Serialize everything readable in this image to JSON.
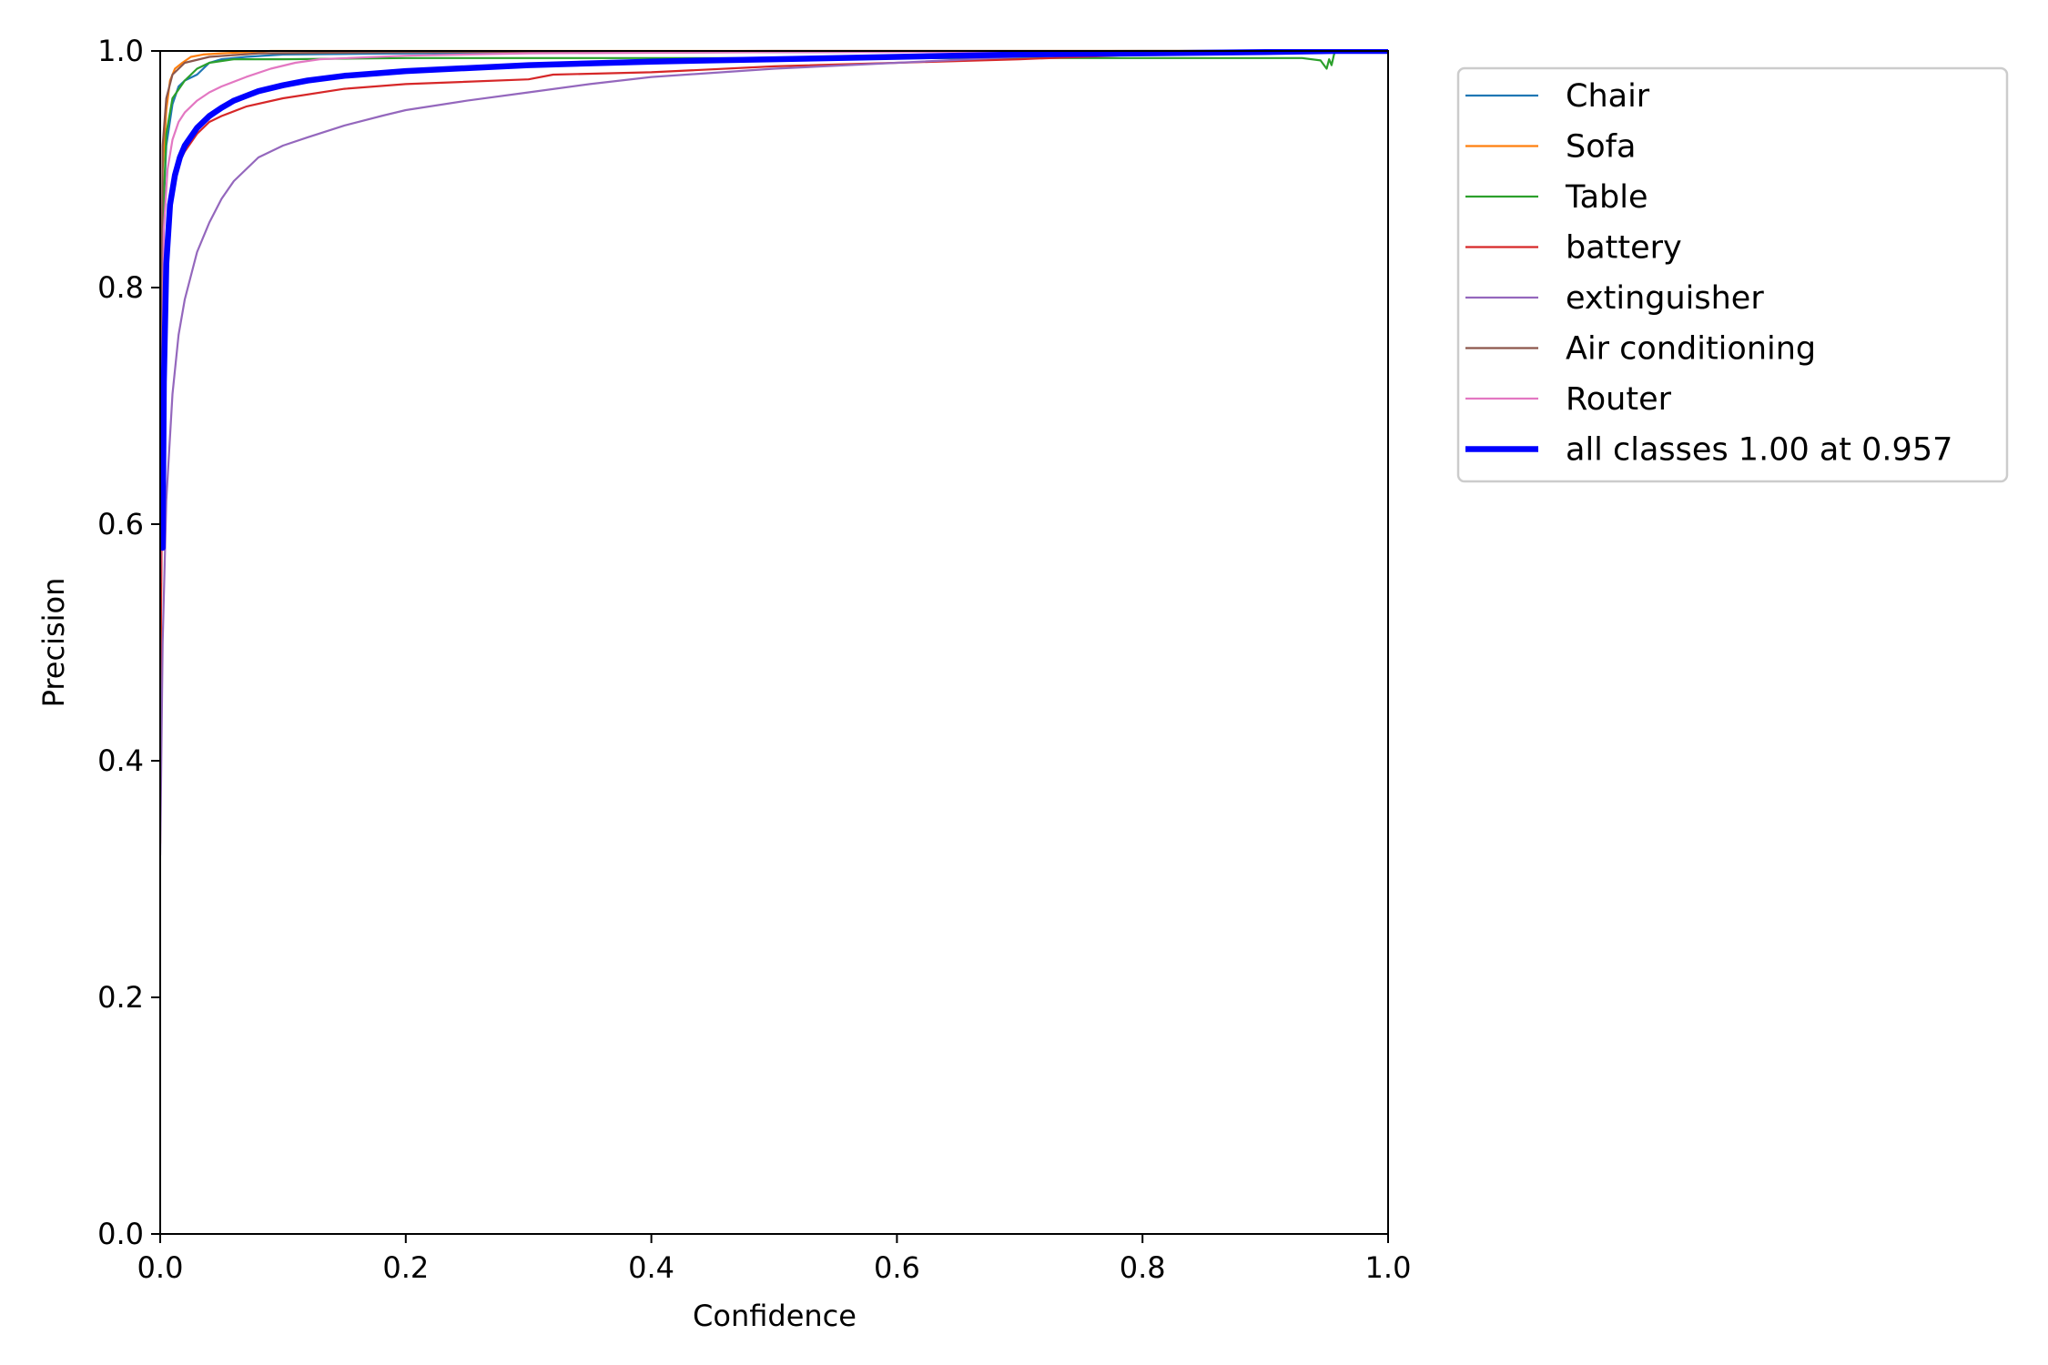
{
  "chart_data": {
    "type": "line",
    "xlabel": "Confidence",
    "ylabel": "Precision",
    "xlim": [
      0.0,
      1.0
    ],
    "ylim": [
      0.0,
      1.0
    ],
    "xticks": [
      "0.0",
      "0.2",
      "0.4",
      "0.6",
      "0.8",
      "1.0"
    ],
    "yticks": [
      "0.0",
      "0.2",
      "0.4",
      "0.6",
      "0.8",
      "1.0"
    ],
    "grid": false,
    "legend_placement": "outside upper right",
    "series": [
      {
        "name": "Chair",
        "color": "#1f77b4",
        "width": 2.2,
        "x": [
          0.0,
          0.002,
          0.005,
          0.01,
          0.015,
          0.02,
          0.03,
          0.04,
          0.05,
          0.07,
          0.1,
          0.2,
          0.5,
          0.8,
          0.957,
          1.0
        ],
        "y": [
          0.38,
          0.85,
          0.92,
          0.955,
          0.97,
          0.975,
          0.98,
          0.99,
          0.993,
          0.995,
          0.997,
          0.998,
          0.999,
          1.0,
          1.0,
          1.0
        ]
      },
      {
        "name": "Sofa",
        "color": "#ff7f0e",
        "width": 2.2,
        "x": [
          0.0,
          0.002,
          0.005,
          0.008,
          0.012,
          0.018,
          0.025,
          0.035,
          0.05,
          0.07,
          0.09,
          0.12,
          0.5,
          1.0
        ],
        "y": [
          0.33,
          0.9,
          0.95,
          0.975,
          0.985,
          0.99,
          0.995,
          0.997,
          0.998,
          0.999,
          1.0,
          1.0,
          1.0,
          1.0
        ]
      },
      {
        "name": "Table",
        "color": "#2ca02c",
        "width": 2.2,
        "x": [
          0.0,
          0.002,
          0.005,
          0.01,
          0.02,
          0.03,
          0.04,
          0.06,
          0.1,
          0.2,
          0.5,
          0.8,
          0.93,
          0.945,
          0.95,
          0.952,
          0.954,
          0.956,
          0.957,
          1.0
        ],
        "y": [
          0.5,
          0.85,
          0.93,
          0.96,
          0.975,
          0.985,
          0.99,
          0.993,
          0.993,
          0.994,
          0.994,
          0.994,
          0.994,
          0.992,
          0.985,
          0.993,
          0.988,
          0.997,
          1.0,
          1.0
        ]
      },
      {
        "name": "battery",
        "color": "#d62728",
        "width": 2.2,
        "x": [
          0.0,
          0.003,
          0.006,
          0.01,
          0.015,
          0.02,
          0.03,
          0.04,
          0.05,
          0.07,
          0.1,
          0.15,
          0.2,
          0.3,
          0.32,
          0.4,
          0.5,
          0.6,
          0.7,
          0.8,
          1.0
        ],
        "y": [
          0.45,
          0.8,
          0.86,
          0.89,
          0.905,
          0.915,
          0.93,
          0.94,
          0.945,
          0.953,
          0.96,
          0.968,
          0.972,
          0.976,
          0.98,
          0.982,
          0.987,
          0.99,
          0.993,
          0.997,
          1.0
        ]
      },
      {
        "name": "extinguisher",
        "color": "#9467bd",
        "width": 2.2,
        "x": [
          0.0,
          0.002,
          0.005,
          0.01,
          0.015,
          0.02,
          0.03,
          0.04,
          0.05,
          0.06,
          0.07,
          0.08,
          0.09,
          0.1,
          0.12,
          0.15,
          0.18,
          0.2,
          0.25,
          0.3,
          0.35,
          0.4,
          0.5,
          0.6,
          0.7,
          0.8,
          1.0
        ],
        "y": [
          0.32,
          0.5,
          0.62,
          0.71,
          0.76,
          0.79,
          0.83,
          0.855,
          0.875,
          0.89,
          0.9,
          0.91,
          0.915,
          0.92,
          0.927,
          0.937,
          0.945,
          0.95,
          0.958,
          0.965,
          0.972,
          0.978,
          0.985,
          0.99,
          0.995,
          0.998,
          1.0
        ]
      },
      {
        "name": "Air conditioning",
        "color": "#8c564b",
        "width": 2.2,
        "x": [
          0.0,
          0.002,
          0.005,
          0.01,
          0.02,
          0.04,
          0.08,
          0.2,
          0.5,
          1.0
        ],
        "y": [
          0.6,
          0.92,
          0.96,
          0.98,
          0.99,
          0.995,
          0.998,
          0.999,
          1.0,
          1.0
        ]
      },
      {
        "name": "Router",
        "color": "#e377c2",
        "width": 2.2,
        "x": [
          0.0,
          0.003,
          0.006,
          0.01,
          0.015,
          0.02,
          0.03,
          0.04,
          0.05,
          0.07,
          0.09,
          0.11,
          0.13,
          0.2,
          0.3,
          0.5,
          1.0
        ],
        "y": [
          0.55,
          0.85,
          0.9,
          0.925,
          0.94,
          0.948,
          0.958,
          0.965,
          0.97,
          0.978,
          0.985,
          0.99,
          0.993,
          0.996,
          0.998,
          0.999,
          1.0
        ]
      },
      {
        "name": "all classes 1.00 at 0.957",
        "color": "#0000ff",
        "width": 6.5,
        "x": [
          0.0,
          0.002,
          0.003,
          0.005,
          0.008,
          0.012,
          0.016,
          0.02,
          0.03,
          0.04,
          0.05,
          0.06,
          0.07,
          0.08,
          0.1,
          0.12,
          0.15,
          0.2,
          0.3,
          0.4,
          0.5,
          0.6,
          0.7,
          0.8,
          0.9,
          0.957,
          1.0
        ],
        "y": [
          0.59,
          0.58,
          0.72,
          0.82,
          0.87,
          0.895,
          0.91,
          0.92,
          0.935,
          0.945,
          0.952,
          0.958,
          0.962,
          0.966,
          0.971,
          0.975,
          0.979,
          0.983,
          0.988,
          0.991,
          0.993,
          0.995,
          0.997,
          0.998,
          0.999,
          1.0,
          1.0
        ]
      }
    ]
  }
}
